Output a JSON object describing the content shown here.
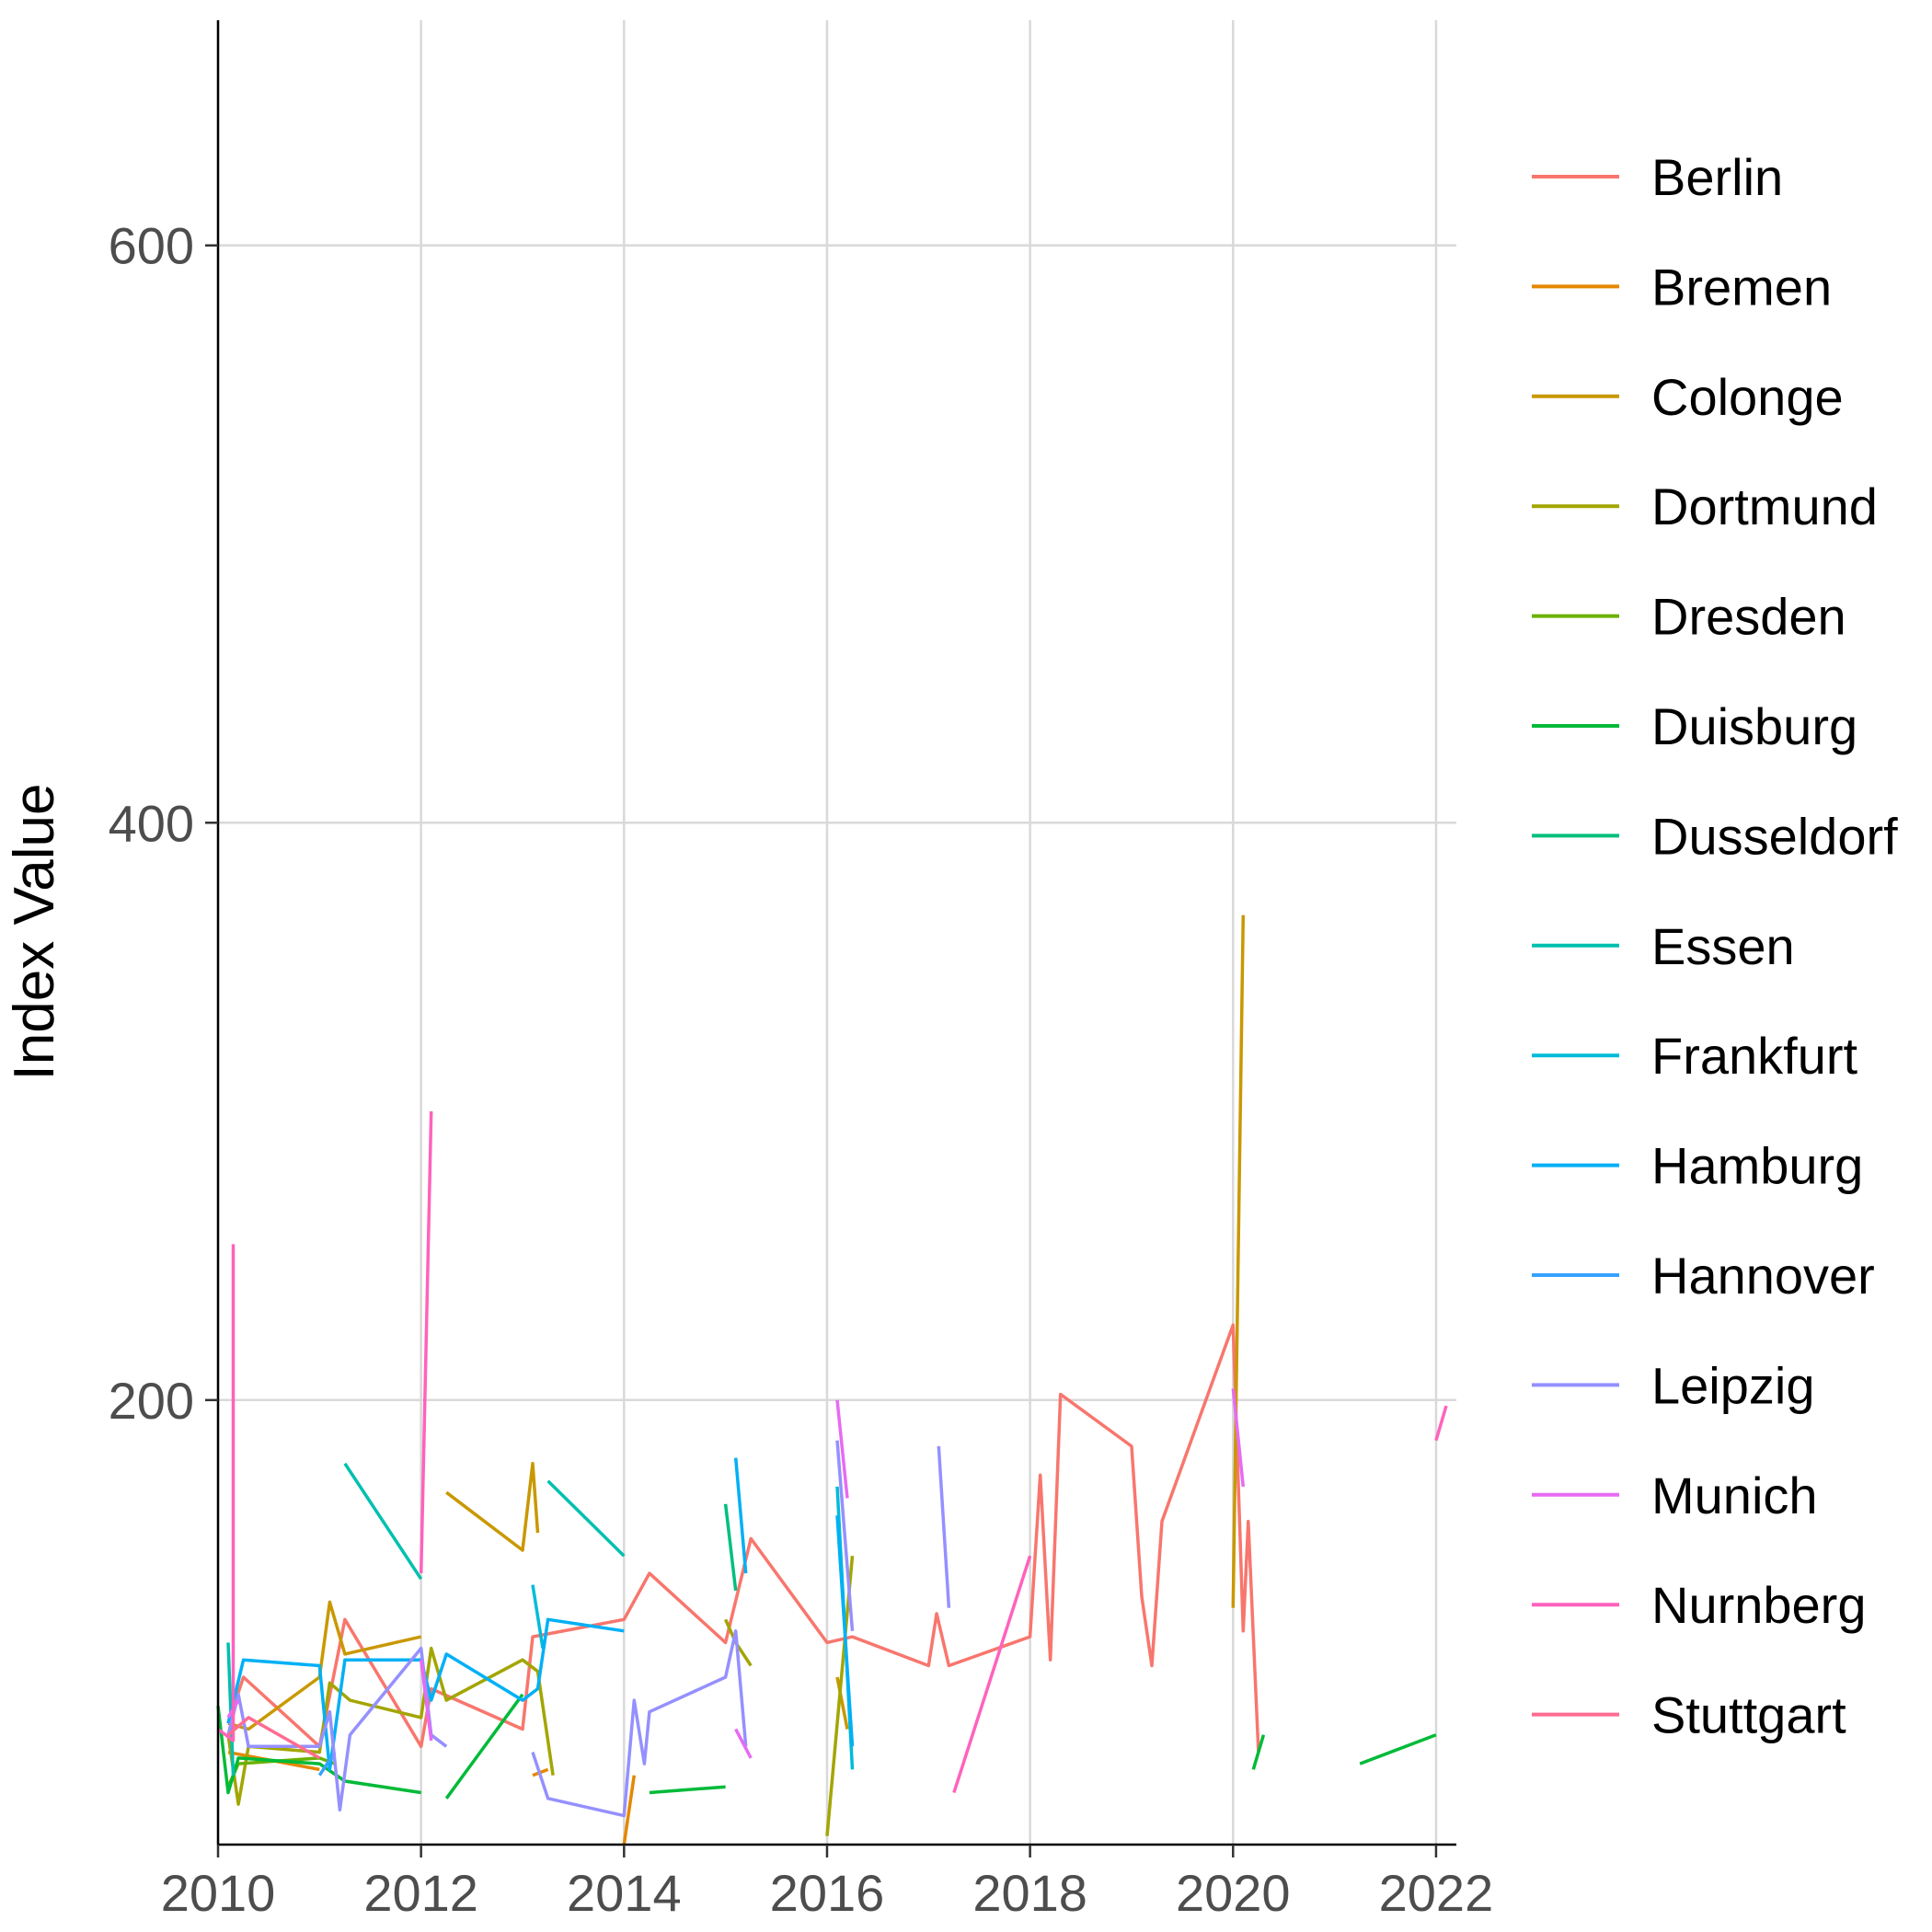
{
  "chart_data": {
    "type": "line",
    "title": "",
    "xlabel": "",
    "ylabel": "Index Value",
    "xlim": [
      2010,
      2022.2
    ],
    "ylim": [
      46,
      678
    ],
    "xticks": [
      2010,
      2012,
      2014,
      2016,
      2018,
      2020,
      2022
    ],
    "xtick_labels": [
      "2010",
      "2012",
      "2014",
      "2016",
      "2018",
      "2020",
      "2022"
    ],
    "yticks": [
      200,
      400,
      600
    ],
    "ytick_labels": [
      "200",
      "400",
      "600"
    ],
    "grid": true,
    "legend_position": "right",
    "series": [
      {
        "name": "Berlin",
        "color": "#F8766D",
        "segments": [
          [
            [
              2010.1,
              88
            ],
            [
              2010.25,
              104
            ],
            [
              2011.0,
              80
            ],
            [
              2011.25,
              124
            ],
            [
              2012.0,
              80
            ],
            [
              2012.1,
              100
            ],
            [
              2013.0,
              86
            ],
            [
              2013.1,
              118
            ],
            [
              2014.0,
              124
            ],
            [
              2014.25,
              140
            ],
            [
              2015.0,
              116
            ],
            [
              2015.25,
              152
            ],
            [
              2016.0,
              116
            ],
            [
              2016.25,
              118
            ],
            [
              2017.0,
              108
            ],
            [
              2017.08,
              126
            ],
            [
              2017.2,
              108
            ],
            [
              2018.0,
              118
            ],
            [
              2018.1,
              174
            ],
            [
              2018.2,
              110
            ],
            [
              2018.3,
              202
            ],
            [
              2019.0,
              184
            ],
            [
              2019.1,
              132
            ],
            [
              2019.2,
              108
            ],
            [
              2019.3,
              158
            ],
            [
              2020.0,
              226
            ],
            [
              2020.1,
              120
            ],
            [
              2020.15,
              158
            ],
            [
              2020.25,
              78
            ]
          ]
        ]
      },
      {
        "name": "Bremen",
        "color": "#E58700",
        "segments": [
          [
            [
              2010.1,
              78
            ],
            [
              2011.0,
              72
            ]
          ],
          [
            [
              2013.1,
              70
            ],
            [
              2013.25,
              72
            ]
          ],
          [
            [
              2014.0,
              46
            ],
            [
              2014.1,
              70
            ]
          ]
        ]
      },
      {
        "name": "Colonge",
        "color": "#C99800",
        "segments": [
          [
            [
              2010.1,
              88
            ],
            [
              2010.3,
              86
            ],
            [
              2011.0,
              104
            ],
            [
              2011.1,
              130
            ],
            [
              2011.25,
              112
            ],
            [
              2012.0,
              118
            ]
          ],
          [
            [
              2012.25,
              168
            ],
            [
              2013.0,
              148
            ],
            [
              2013.1,
              178
            ],
            [
              2013.15,
              154
            ]
          ],
          [
            [
              2016.1,
              104
            ],
            [
              2016.2,
              86
            ]
          ],
          [
            [
              2020.0,
              128
            ],
            [
              2020.1,
              368
            ]
          ]
        ]
      },
      {
        "name": "Dortmund",
        "color": "#A3A500",
        "segments": [
          [
            [
              2010.1,
              84
            ],
            [
              2010.2,
              60
            ],
            [
              2010.3,
              80
            ],
            [
              2011.0,
              78
            ],
            [
              2011.1,
              102
            ],
            [
              2011.3,
              96
            ],
            [
              2012.0,
              90
            ],
            [
              2012.1,
              114
            ],
            [
              2012.25,
              96
            ],
            [
              2013.0,
              110
            ],
            [
              2013.15,
              106
            ],
            [
              2013.3,
              70
            ]
          ],
          [
            [
              2015.0,
              124
            ],
            [
              2015.1,
              116
            ],
            [
              2015.25,
              108
            ]
          ],
          [
            [
              2016.0,
              49
            ],
            [
              2016.25,
              146
            ]
          ]
        ]
      },
      {
        "name": "Dresden",
        "color": "#6BB100",
        "segments": [
          [
            [
              2010.1,
              66
            ],
            [
              2010.2,
              74
            ],
            [
              2011.0,
              76
            ],
            [
              2011.15,
              74
            ]
          ]
        ]
      },
      {
        "name": "Duisburg",
        "color": "#00BA38",
        "segments": [
          [
            [
              2010.0,
              94
            ],
            [
              2010.1,
              64
            ],
            [
              2010.2,
              76
            ],
            [
              2011.0,
              74
            ],
            [
              2011.25,
              68
            ],
            [
              2012.0,
              64
            ]
          ],
          [
            [
              2012.25,
              62
            ],
            [
              2013.0,
              98
            ]
          ],
          [
            [
              2014.25,
              64
            ],
            [
              2015.0,
              66
            ]
          ],
          [
            [
              2020.2,
              72
            ],
            [
              2020.3,
              84
            ]
          ],
          [
            [
              2021.25,
              74
            ],
            [
              2022.0,
              84
            ]
          ]
        ]
      },
      {
        "name": "Dusseldorf",
        "color": "#00BF7D",
        "segments": [
          [
            [
              2015.0,
              164
            ],
            [
              2015.1,
              134
            ]
          ]
        ]
      },
      {
        "name": "Essen",
        "color": "#00C0AF",
        "segments": [
          [
            [
              2010.1,
              116
            ],
            [
              2010.15,
              70
            ]
          ],
          [
            [
              2011.25,
              178
            ],
            [
              2012.0,
              138
            ]
          ],
          [
            [
              2013.25,
              172
            ],
            [
              2014.0,
              146
            ]
          ]
        ]
      },
      {
        "name": "Frankfurt",
        "color": "#00BCD8",
        "segments": [
          [
            [
              2013.1,
              136
            ],
            [
              2013.2,
              114
            ]
          ],
          [
            [
              2016.1,
              170
            ],
            [
              2016.25,
              72
            ]
          ]
        ]
      },
      {
        "name": "Hamburg",
        "color": "#00B0F6",
        "segments": [
          [
            [
              2010.1,
              88
            ],
            [
              2010.25,
              110
            ],
            [
              2011.0,
              108
            ],
            [
              2011.1,
              72
            ],
            [
              2011.25,
              110
            ],
            [
              2012.0,
              110
            ],
            [
              2012.1,
              96
            ],
            [
              2012.25,
              112
            ],
            [
              2013.0,
              96
            ],
            [
              2013.15,
              100
            ],
            [
              2013.25,
              124
            ],
            [
              2014.0,
              120
            ]
          ],
          [
            [
              2015.1,
              180
            ],
            [
              2015.2,
              140
            ]
          ],
          [
            [
              2016.1,
              160
            ],
            [
              2016.25,
              80
            ]
          ]
        ]
      },
      {
        "name": "Hannover",
        "color": "#35A2FF",
        "segments": [
          [
            [
              2011.0,
              70
            ],
            [
              2011.15,
              78
            ]
          ]
        ]
      },
      {
        "name": "Leipzig",
        "color": "#9590FF",
        "segments": [
          [
            [
              2010.1,
              84
            ],
            [
              2010.2,
              98
            ],
            [
              2010.3,
              80
            ],
            [
              2011.0,
              80
            ],
            [
              2011.1,
              92
            ],
            [
              2011.2,
              58
            ],
            [
              2011.3,
              84
            ],
            [
              2012.0,
              114
            ],
            [
              2012.1,
              84
            ],
            [
              2012.25,
              80
            ]
          ],
          [
            [
              2013.1,
              78
            ],
            [
              2013.25,
              62
            ],
            [
              2014.0,
              56
            ],
            [
              2014.1,
              96
            ],
            [
              2014.2,
              74
            ],
            [
              2014.25,
              92
            ],
            [
              2015.0,
              104
            ],
            [
              2015.1,
              120
            ],
            [
              2015.2,
              80
            ]
          ],
          [
            [
              2016.1,
              186
            ],
            [
              2016.25,
              120
            ]
          ],
          [
            [
              2017.1,
              184
            ],
            [
              2017.2,
              128
            ]
          ]
        ]
      },
      {
        "name": "Munich",
        "color": "#E76BF3",
        "segments": [
          [
            [
              2010.1,
              90
            ],
            [
              2010.2,
              96
            ]
          ],
          [
            [
              2012.0,
              110
            ],
            [
              2012.1,
              82
            ]
          ],
          [
            [
              2015.1,
              86
            ],
            [
              2015.25,
              76
            ]
          ],
          [
            [
              2016.1,
              200
            ],
            [
              2016.2,
              166
            ]
          ],
          [
            [
              2020.0,
              204
            ],
            [
              2020.1,
              170
            ]
          ]
        ]
      },
      {
        "name": "Nurnberg",
        "color": "#FF62BC",
        "segments": [
          [
            [
              2010.0,
              86
            ],
            [
              2010.15,
              82
            ],
            [
              2010.15,
              254
            ]
          ],
          [
            [
              2012.0,
              140
            ],
            [
              2012.1,
              300
            ]
          ],
          [
            [
              2017.25,
              64
            ],
            [
              2018.0,
              146
            ]
          ],
          [
            [
              2022.0,
              186
            ],
            [
              2022.1,
              198
            ]
          ]
        ]
      },
      {
        "name": "Stuttgart",
        "color": "#FF6C91",
        "segments": [
          [
            [
              2010.1,
              84
            ],
            [
              2010.3,
              90
            ],
            [
              2011.0,
              76
            ]
          ]
        ]
      }
    ]
  }
}
